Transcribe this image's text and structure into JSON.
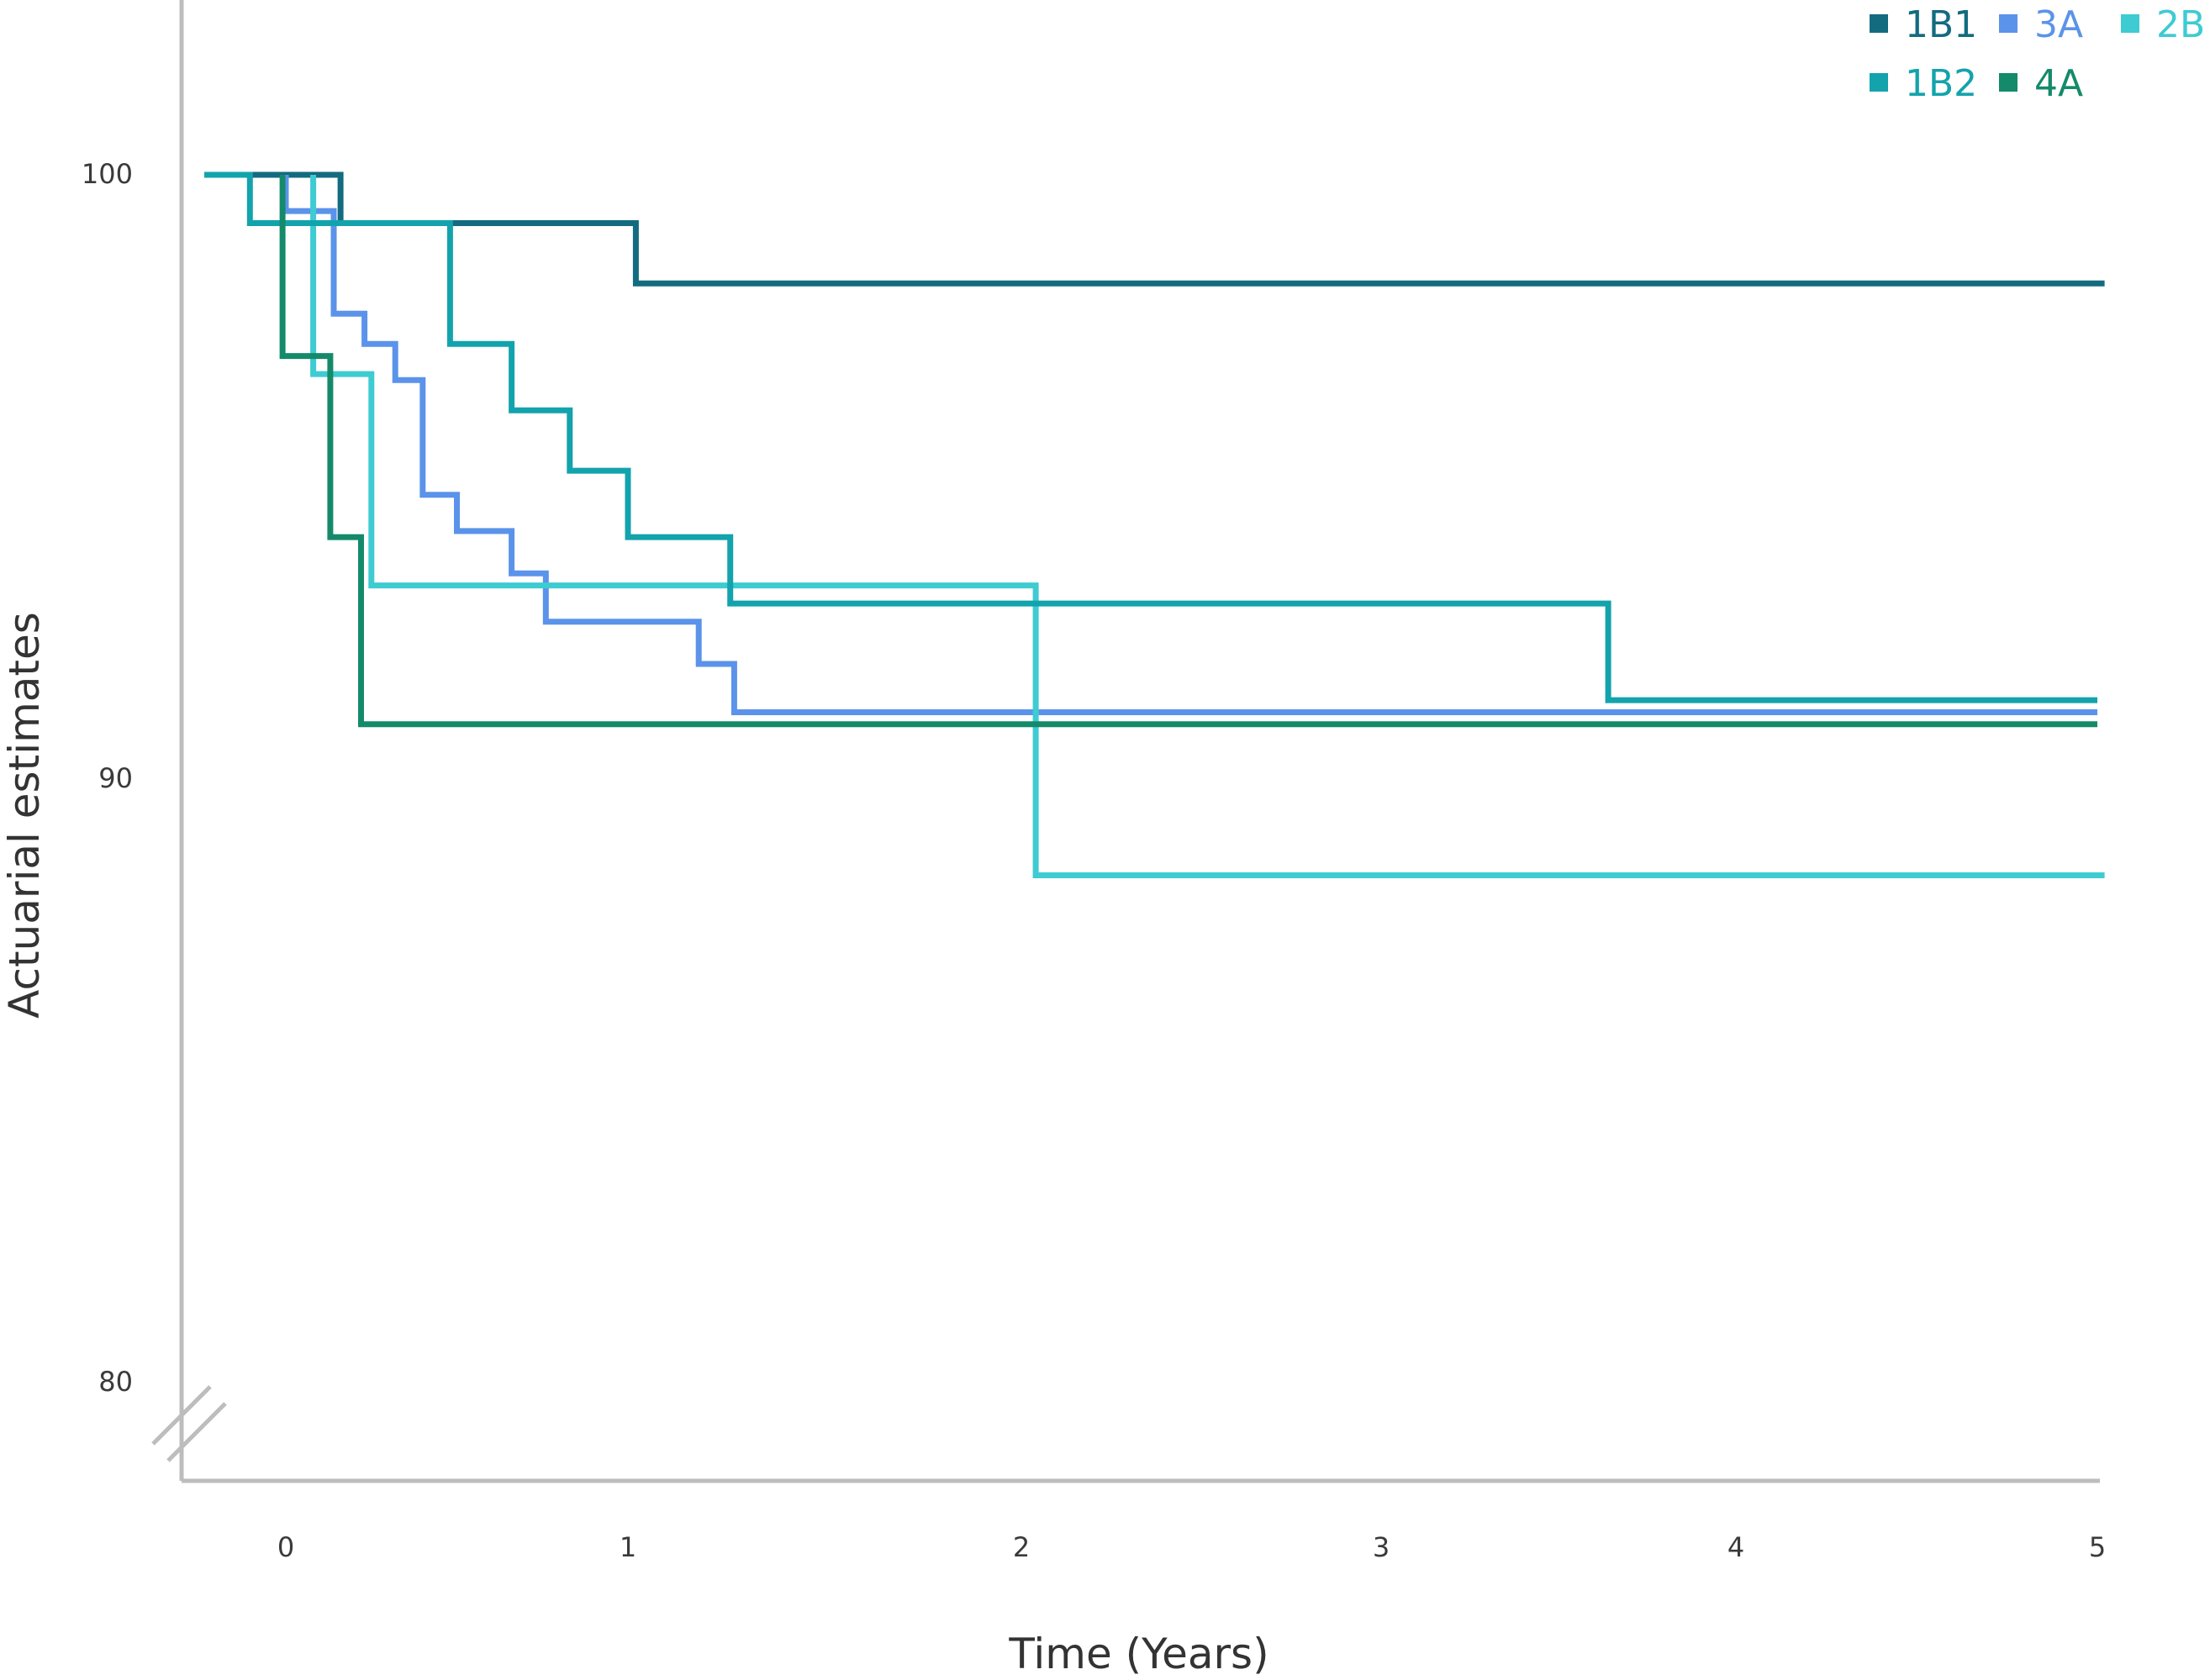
{
  "chart_data": {
    "type": "line",
    "step": true,
    "xlabel": "Time (Years)",
    "ylabel": "Actuarial estimates",
    "x_ticks": [
      "0",
      "1",
      "2",
      "3",
      "4",
      "5"
    ],
    "y_ticks": [
      "80",
      "90",
      "100"
    ],
    "ylim": [
      80,
      100
    ],
    "y_axis_break": true,
    "grid": false,
    "legend_position": "top-right",
    "series": [
      {
        "name": "1B1",
        "color": "#136b80",
        "points": [
          [
            -0.25,
            100
          ],
          [
            0.16,
            100
          ],
          [
            0.16,
            99.2
          ],
          [
            1.02,
            99.2
          ],
          [
            1.02,
            98.2
          ],
          [
            5.02,
            98.2
          ]
        ]
      },
      {
        "name": "3A",
        "color": "#5b93ea",
        "points": [
          [
            0.0,
            100
          ],
          [
            0.0,
            99.4
          ],
          [
            0.14,
            99.4
          ],
          [
            0.14,
            97.7
          ],
          [
            0.23,
            97.7
          ],
          [
            0.23,
            97.2
          ],
          [
            0.32,
            97.2
          ],
          [
            0.32,
            96.6
          ],
          [
            0.4,
            96.6
          ],
          [
            0.4,
            94.7
          ],
          [
            0.5,
            94.7
          ],
          [
            0.5,
            94.1
          ],
          [
            0.66,
            94.1
          ],
          [
            0.66,
            93.4
          ],
          [
            0.76,
            93.4
          ],
          [
            0.76,
            92.6
          ],
          [
            1.18,
            92.6
          ],
          [
            1.18,
            91.9
          ],
          [
            1.27,
            91.9
          ],
          [
            1.27,
            91.1
          ],
          [
            5.0,
            91.1
          ]
        ]
      },
      {
        "name": "2B",
        "color": "#3ecbd2",
        "points": [
          [
            0.08,
            100
          ],
          [
            0.08,
            96.7
          ],
          [
            0.25,
            96.7
          ],
          [
            0.25,
            93.2
          ],
          [
            2.04,
            93.2
          ],
          [
            2.04,
            88.4
          ],
          [
            5.02,
            88.4
          ]
        ]
      },
      {
        "name": "1B2",
        "color": "#13a3ad",
        "points": [
          [
            -0.25,
            100
          ],
          [
            -0.11,
            100
          ],
          [
            -0.11,
            99.2
          ],
          [
            0.48,
            99.2
          ],
          [
            0.48,
            97.2
          ],
          [
            0.66,
            97.2
          ],
          [
            0.66,
            96.1
          ],
          [
            0.83,
            96.1
          ],
          [
            0.83,
            95.1
          ],
          [
            1.0,
            95.1
          ],
          [
            1.0,
            94.0
          ],
          [
            1.26,
            94.0
          ],
          [
            1.26,
            92.9
          ],
          [
            3.64,
            92.9
          ],
          [
            3.64,
            91.3
          ],
          [
            5.0,
            91.3
          ]
        ]
      },
      {
        "name": "4A",
        "color": "#148a6a",
        "points": [
          [
            -0.01,
            100
          ],
          [
            -0.01,
            97.0
          ],
          [
            0.13,
            97.0
          ],
          [
            0.13,
            94.0
          ],
          [
            0.22,
            94.0
          ],
          [
            0.22,
            90.9
          ],
          [
            5.0,
            90.9
          ]
        ]
      }
    ],
    "legend_rows": [
      [
        "1B1",
        "3A",
        "2B"
      ],
      [
        "1B2",
        "4A"
      ]
    ]
  }
}
